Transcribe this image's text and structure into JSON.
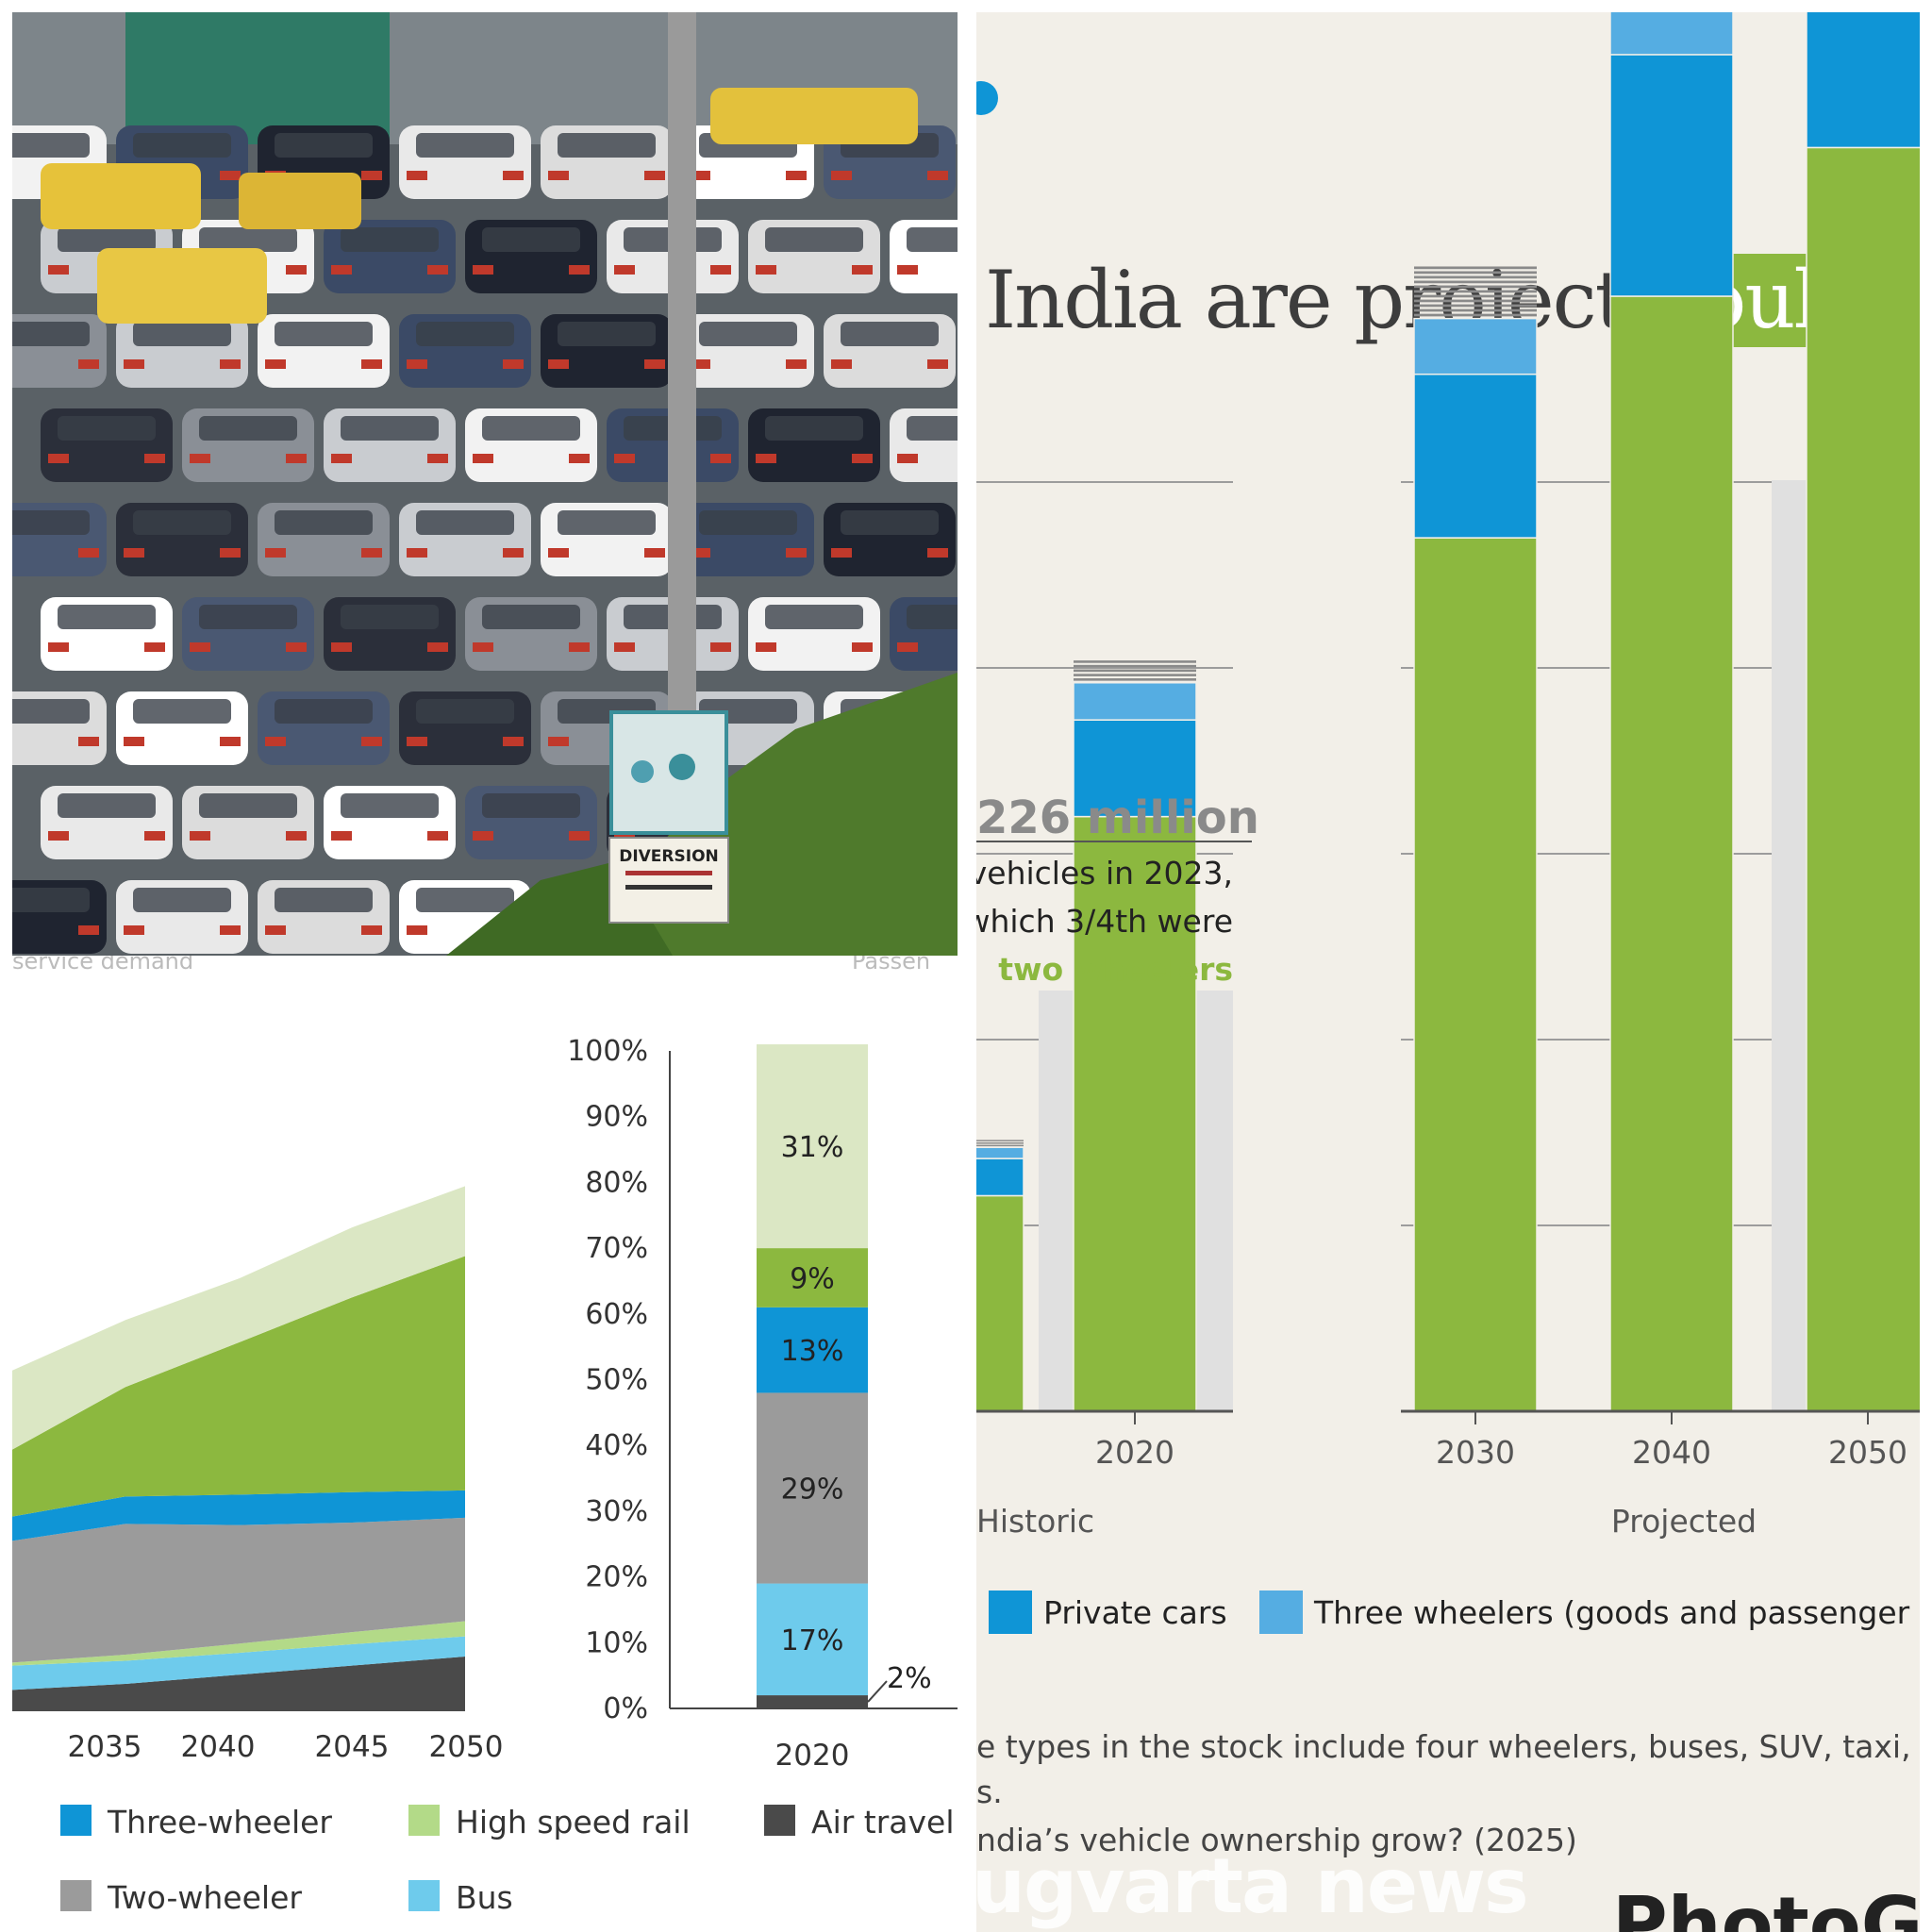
{
  "photo": {
    "sign_text": "DIVERSION"
  },
  "left_chart": {
    "header_fragments": [
      "service demand",
      "Passen"
    ],
    "legend": [
      {
        "label": "Three-wheeler",
        "color": "#0f95d6"
      },
      {
        "label": "High speed rail",
        "color": "#b3da88"
      },
      {
        "label": "Air travel",
        "color": "#4a4a4a"
      },
      {
        "label": "Two-wheeler",
        "color": "#9b9b9b"
      },
      {
        "label": "Bus",
        "color": "#6ecbec"
      }
    ]
  },
  "right_chart": {
    "headline_plain": "India are projected to",
    "headline_highlight": "double b",
    "callout": {
      "value": "226 million",
      "line1": "vehicles in 2023,",
      "line2": "which 3/4th were",
      "line3": "two wheelers"
    },
    "group_labels": {
      "historic": "Historic",
      "projected": "Projected"
    },
    "legend": [
      {
        "label": "Private cars",
        "color": "#0f95d6"
      },
      {
        "label": "Three wheelers (goods and passenger",
        "color": "#55ade2"
      }
    ],
    "footnote_1": "e types in the stock include four wheelers, buses, SUV, taxi, h",
    "footnote_2": "s.",
    "question": "ndia’s vehicle ownership grow? (2025)",
    "watermark": "ugvarta news",
    "credit": "PhotoGo"
  },
  "chart_data": [
    {
      "type": "area",
      "title": "",
      "x": [
        2030,
        2035,
        2040,
        2045,
        2050
      ],
      "tick_labels": [
        ")",
        "2035",
        "2040",
        "2045",
        "2050"
      ],
      "ylabel": "",
      "stacking": "stacked",
      "series": [
        {
          "name": "Air travel",
          "color": "#4a4a4a",
          "values": [
            3.5,
            4.5,
            6.0,
            7.5,
            9.0
          ]
        },
        {
          "name": "Bus",
          "color": "#6ecbec",
          "values": [
            4.0,
            3.8,
            3.6,
            3.5,
            3.3
          ]
        },
        {
          "name": "High speed rail",
          "color": "#b3da88",
          "values": [
            0.5,
            1.0,
            1.5,
            2.0,
            2.5
          ]
        },
        {
          "name": "Two-wheeler",
          "color": "#9b9b9b",
          "values": [
            20.0,
            21.5,
            19.5,
            18.0,
            17.0
          ]
        },
        {
          "name": "Three-wheeler",
          "color": "#0f95d6",
          "values": [
            4.0,
            4.5,
            5.0,
            5.0,
            4.5
          ]
        },
        {
          "values": [
            11.0,
            18.0,
            25.0,
            32.0,
            38.5
          ],
          "color": "#8cb83f"
        },
        {
          "values": [
            13.0,
            11.0,
            10.5,
            11.5,
            11.5
          ],
          "color": "#dbe7c4"
        }
      ]
    },
    {
      "type": "bar",
      "title": "",
      "categories": [
        "2020"
      ],
      "stacking": "percent",
      "ylim": [
        0,
        100
      ],
      "yticks": [
        "0%",
        "10%",
        "20%",
        "30%",
        "40%",
        "50%",
        "60%",
        "70%",
        "80%",
        "90%",
        "100%"
      ],
      "series": [
        {
          "label": "2%",
          "color": "#4a4a4a",
          "values": [
            2
          ]
        },
        {
          "label": "17%",
          "color": "#6ecbec",
          "values": [
            17
          ]
        },
        {
          "label": "29%",
          "color": "#9b9b9b",
          "values": [
            29
          ]
        },
        {
          "label": "13%",
          "color": "#0f95d6",
          "values": [
            13
          ]
        },
        {
          "label": "9%",
          "color": "#8cb83f",
          "values": [
            9
          ]
        },
        {
          "label": "31%",
          "color": "#dbe7c4",
          "values": [
            31
          ]
        }
      ]
    },
    {
      "type": "bar",
      "title": "",
      "stacking": "stacked",
      "categories": [
        "",
        "2020",
        "2030",
        "2040",
        "2050"
      ],
      "groups": [
        {
          "label": "Historic",
          "categories": [
            "",
            "2020"
          ]
        },
        {
          "label": "Projected",
          "categories": [
            "2030",
            "2040",
            "2050"
          ]
        }
      ],
      "series": [
        {
          "color": "#8cb83f",
          "values": [
            0.58,
            1.6,
            2.35,
            3.0,
            3.4
          ]
        },
        {
          "name": "Private cars",
          "color": "#0f95d6",
          "values": [
            0.1,
            0.26,
            0.44,
            0.65,
            0.83
          ]
        },
        {
          "name": "Three wheelers (goods and passenger",
          "color": "#55ade2",
          "values": [
            0.03,
            0.1,
            0.15,
            0.22,
            0.3
          ]
        },
        {
          "color": "#8a8a8a",
          "values": [
            0.02,
            0.06,
            0.14,
            0.21,
            0.27
          ]
        }
      ]
    }
  ]
}
